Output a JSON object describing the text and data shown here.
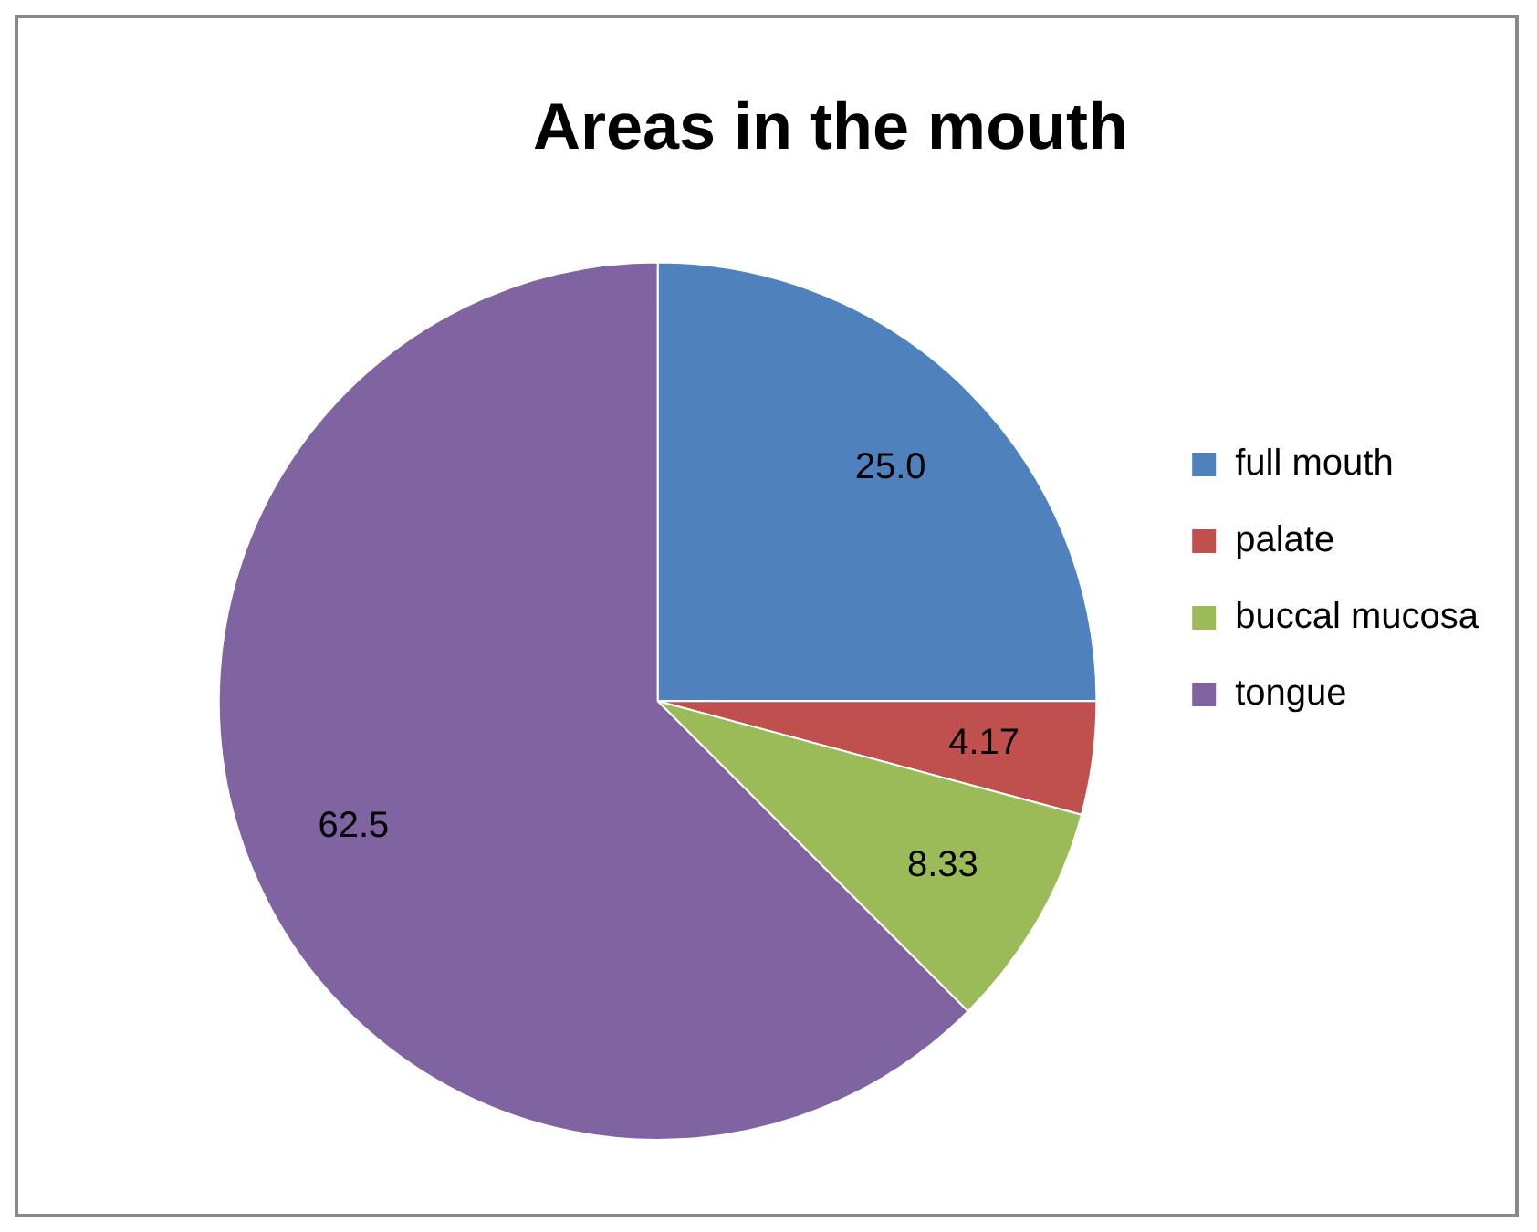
{
  "chart_data": {
    "type": "pie",
    "title": "Areas in the mouth",
    "categories": [
      "full mouth",
      "palate",
      "buccal mucosa",
      "tongue"
    ],
    "values": [
      25.0,
      4.17,
      8.33,
      62.5
    ],
    "value_labels": [
      "25.0",
      "4.17",
      "8.33",
      "62.5"
    ],
    "colors": [
      "#4f81bd",
      "#c0504d",
      "#9bbb59",
      "#8064a2"
    ],
    "legend": "right"
  }
}
